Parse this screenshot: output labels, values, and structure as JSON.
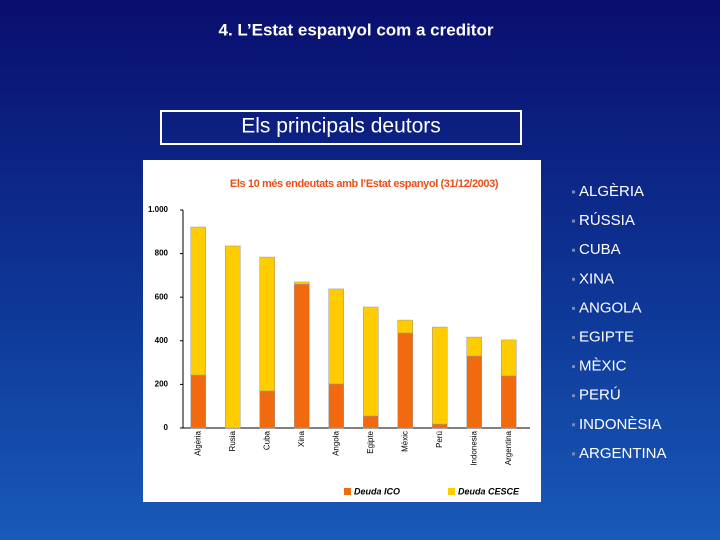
{
  "slide": {
    "title": "4. L’Estat espanyol com a creditor",
    "heading": "Els principals deutors",
    "list": [
      "ALGÈRIA",
      "RÚSSIA",
      "CUBA",
      "XINA",
      "ANGOLA",
      "EGIPTE",
      "MÈXIC",
      "PERÚ",
      "INDONÈSIA",
      "ARGENTINA"
    ]
  },
  "chart_data": {
    "type": "stacked_bar",
    "title": "Els 10 més endeutats amb l’Estat espanyol (31/12/2003)",
    "categories": [
      "Algèria",
      "Rusia",
      "Cuba",
      "Xina",
      "Angola",
      "Egipte",
      "Mèxic",
      "Perú",
      "Indonesia",
      "Argentina"
    ],
    "series": [
      {
        "name": "Deuda ICO",
        "color": "#f26a10",
        "values": [
          243,
          0,
          170,
          660,
          202,
          55,
          436,
          18,
          330,
          239
        ]
      },
      {
        "name": "Deuda CESCE",
        "color": "#ffcc00",
        "values": [
          679,
          835,
          614,
          10,
          436,
          500,
          59,
          445,
          87,
          165
        ]
      }
    ],
    "ylim": [
      0,
      1000
    ],
    "yticks": [
      0,
      200,
      400,
      600,
      800,
      {
        "value": 1000,
        "label": "1.000"
      }
    ]
  }
}
